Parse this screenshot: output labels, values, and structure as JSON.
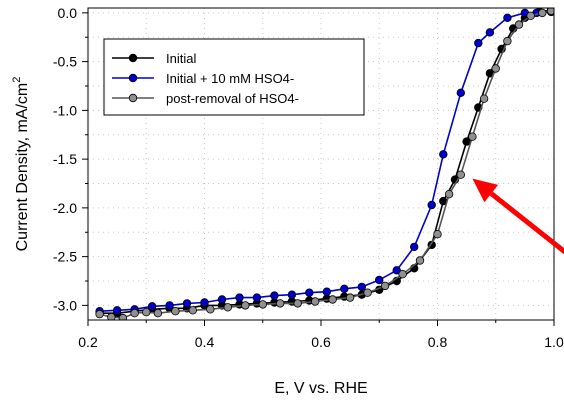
{
  "chart_data": {
    "type": "line",
    "xlabel": "E, V vs. RHE",
    "ylabel": "Current Density, mA/cm",
    "ylabel_superscript": "2",
    "xlim": [
      0.2,
      1.0
    ],
    "ylim": [
      -3.15,
      0.05
    ],
    "x_ticks": [
      0.2,
      0.4,
      0.6,
      0.8,
      1.0
    ],
    "x_tick_labels": [
      "0.2",
      "0.4",
      "0.6",
      "0.8",
      "1.0"
    ],
    "y_ticks": [
      0.0,
      -0.5,
      -1.0,
      -1.5,
      -2.0,
      -2.5,
      -3.0
    ],
    "y_tick_labels": [
      "0.0",
      "-0.5",
      "-1.0",
      "-1.5",
      "-2.0",
      "-2.5",
      "-3.0"
    ],
    "grid": true,
    "legend_position": "top-left",
    "series": [
      {
        "name": "Initial",
        "color": "#000000",
        "marker_fill": "#000000",
        "points": [
          [
            0.22,
            -3.08
          ],
          [
            0.25,
            -3.08
          ],
          [
            0.28,
            -3.06
          ],
          [
            0.31,
            -3.04
          ],
          [
            0.34,
            -3.03
          ],
          [
            0.37,
            -3.03
          ],
          [
            0.4,
            -3.0
          ],
          [
            0.43,
            -3.0
          ],
          [
            0.46,
            -2.99
          ],
          [
            0.49,
            -2.98
          ],
          [
            0.52,
            -2.97
          ],
          [
            0.55,
            -2.96
          ],
          [
            0.58,
            -2.95
          ],
          [
            0.61,
            -2.93
          ],
          [
            0.64,
            -2.91
          ],
          [
            0.67,
            -2.89
          ],
          [
            0.7,
            -2.84
          ],
          [
            0.73,
            -2.75
          ],
          [
            0.76,
            -2.62
          ],
          [
            0.79,
            -2.38
          ],
          [
            0.81,
            -1.93
          ],
          [
            0.83,
            -1.71
          ],
          [
            0.85,
            -1.32
          ],
          [
            0.87,
            -0.97
          ],
          [
            0.89,
            -0.62
          ],
          [
            0.91,
            -0.37
          ],
          [
            0.93,
            -0.16
          ],
          [
            0.95,
            -0.05
          ],
          [
            0.975,
            0.01
          ],
          [
            0.995,
            0.03
          ]
        ]
      },
      {
        "name": "Initial + 10 mM HSO4-",
        "color": "#0000cc",
        "marker_fill": "#0000cc",
        "points": [
          [
            0.22,
            -3.06
          ],
          [
            0.25,
            -3.05
          ],
          [
            0.28,
            -3.04
          ],
          [
            0.31,
            -3.01
          ],
          [
            0.34,
            -3.0
          ],
          [
            0.37,
            -2.98
          ],
          [
            0.4,
            -2.97
          ],
          [
            0.43,
            -2.94
          ],
          [
            0.46,
            -2.92
          ],
          [
            0.49,
            -2.92
          ],
          [
            0.52,
            -2.9
          ],
          [
            0.55,
            -2.89
          ],
          [
            0.58,
            -2.87
          ],
          [
            0.61,
            -2.86
          ],
          [
            0.64,
            -2.83
          ],
          [
            0.67,
            -2.81
          ],
          [
            0.7,
            -2.74
          ],
          [
            0.73,
            -2.64
          ],
          [
            0.76,
            -2.4
          ],
          [
            0.79,
            -1.97
          ],
          [
            0.81,
            -1.45
          ],
          [
            0.84,
            -0.82
          ],
          [
            0.87,
            -0.31
          ],
          [
            0.89,
            -0.2
          ],
          [
            0.92,
            -0.05
          ],
          [
            0.95,
            0.0
          ],
          [
            0.97,
            0.0
          ],
          [
            0.995,
            0.01
          ]
        ]
      },
      {
        "name": "post-removal of HSO4-",
        "color": "#555555",
        "marker_fill": "#909090",
        "points": [
          [
            0.22,
            -3.09
          ],
          [
            0.24,
            -3.12
          ],
          [
            0.26,
            -3.13
          ],
          [
            0.28,
            -3.08
          ],
          [
            0.3,
            -3.07
          ],
          [
            0.32,
            -3.08
          ],
          [
            0.35,
            -3.06
          ],
          [
            0.38,
            -3.05
          ],
          [
            0.41,
            -3.04
          ],
          [
            0.44,
            -3.02
          ],
          [
            0.47,
            -3.0
          ],
          [
            0.5,
            -2.99
          ],
          [
            0.53,
            -2.98
          ],
          [
            0.56,
            -2.98
          ],
          [
            0.59,
            -2.96
          ],
          [
            0.62,
            -2.94
          ],
          [
            0.65,
            -2.92
          ],
          [
            0.68,
            -2.87
          ],
          [
            0.71,
            -2.8
          ],
          [
            0.74,
            -2.68
          ],
          [
            0.77,
            -2.54
          ],
          [
            0.8,
            -2.27
          ],
          [
            0.82,
            -1.86
          ],
          [
            0.84,
            -1.66
          ],
          [
            0.86,
            -1.27
          ],
          [
            0.88,
            -0.88
          ],
          [
            0.9,
            -0.57
          ],
          [
            0.92,
            -0.29
          ],
          [
            0.94,
            -0.12
          ],
          [
            0.96,
            -0.03
          ],
          [
            0.98,
            0.0
          ],
          [
            0.995,
            0.02
          ]
        ]
      }
    ],
    "annotations": [
      {
        "type": "arrow",
        "color": "#ff0000",
        "from": [
          1.05,
          -2.6
        ],
        "to": [
          0.86,
          -1.7
        ]
      }
    ]
  }
}
